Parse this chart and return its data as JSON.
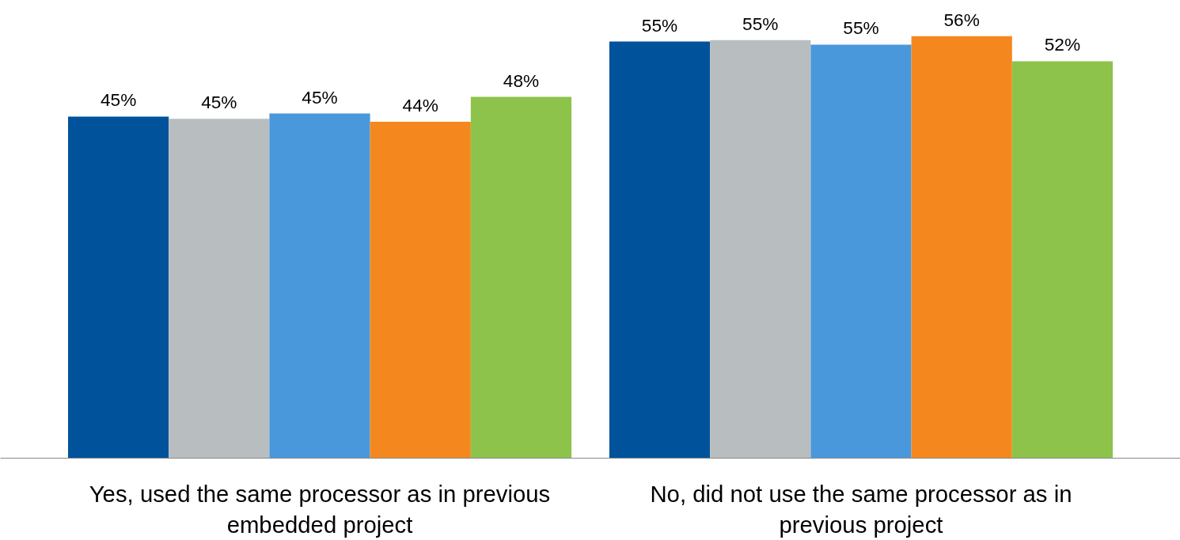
{
  "chart_data": {
    "type": "bar",
    "categories": [
      "Yes, used the same processor as in previous embedded project",
      "No, did not use the same processor as in previous project"
    ],
    "series": [
      {
        "color": "#00539b",
        "values": [
          45.1,
          55.0
        ],
        "value_labels": [
          "45%",
          "55%"
        ]
      },
      {
        "color": "#b8bebf",
        "values": [
          44.8,
          55.2
        ],
        "value_labels": [
          "45%",
          "55%"
        ]
      },
      {
        "color": "#4a98dc",
        "values": [
          45.5,
          54.6
        ],
        "value_labels": [
          "45%",
          "55%"
        ]
      },
      {
        "color": "#f4881f",
        "values": [
          44.4,
          55.7
        ],
        "value_labels": [
          "44%",
          "56%"
        ]
      },
      {
        "color": "#8dc34b",
        "values": [
          47.7,
          52.4
        ],
        "value_labels": [
          "48%",
          "52%"
        ]
      }
    ],
    "grid": false
  }
}
